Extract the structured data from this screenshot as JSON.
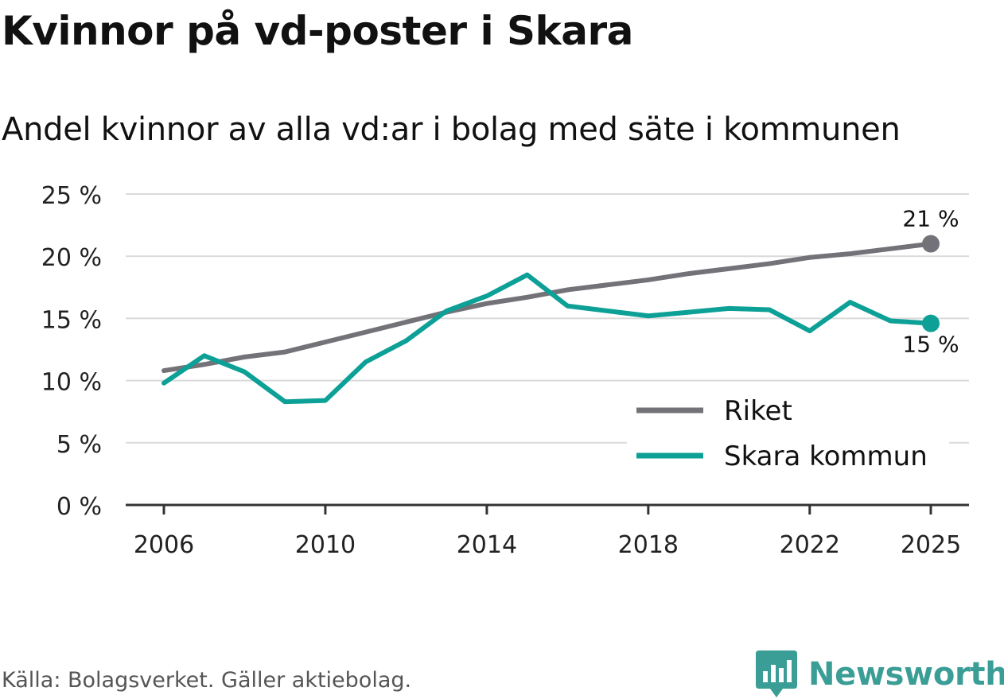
{
  "title": "Kvinnor på vd-poster i Skara",
  "subtitle": "Andel kvinnor av alla vd:ar i bolag med säte i kommunen",
  "source": "Källa: Bolagsverket. Gäller aktiebolag.",
  "brand": "Newsworthy",
  "colors": {
    "riket": "#737278",
    "skara": "#0da096",
    "grid": "#dadada",
    "axis": "#333333",
    "brand": "#3a9e96"
  },
  "chart_data": {
    "type": "line",
    "title": "Kvinnor på vd-poster i Skara",
    "subtitle": "Andel kvinnor av alla vd:ar i bolag med säte i kommunen",
    "xlabel": "",
    "ylabel": "",
    "xlim": [
      2006,
      2025
    ],
    "ylim": [
      0,
      25
    ],
    "x_ticks": [
      2006,
      2010,
      2014,
      2018,
      2022,
      2025
    ],
    "y_ticks": [
      0,
      5,
      10,
      15,
      20,
      25
    ],
    "y_tick_labels": [
      "0 %",
      "5 %",
      "10 %",
      "15 %",
      "20 %",
      "25 %"
    ],
    "grid": true,
    "legend_position": "bottom-right",
    "x": [
      2006,
      2007,
      2008,
      2009,
      2010,
      2011,
      2012,
      2013,
      2014,
      2015,
      2016,
      2017,
      2018,
      2019,
      2020,
      2021,
      2022,
      2023,
      2024,
      2025
    ],
    "series": [
      {
        "name": "Riket",
        "color": "#737278",
        "values": [
          10.8,
          11.3,
          11.9,
          12.3,
          13.1,
          13.9,
          14.7,
          15.5,
          16.2,
          16.7,
          17.3,
          17.7,
          18.1,
          18.6,
          19.0,
          19.4,
          19.9,
          20.2,
          20.6,
          21.0
        ],
        "end_label": "21 %"
      },
      {
        "name": "Skara kommun",
        "color": "#0da096",
        "values": [
          9.8,
          12.0,
          10.7,
          8.3,
          8.4,
          11.5,
          13.2,
          15.6,
          16.8,
          18.5,
          16.0,
          15.6,
          15.2,
          15.5,
          15.8,
          15.7,
          14.0,
          16.3,
          14.8,
          14.6
        ],
        "end_label": "15 %"
      }
    ]
  }
}
